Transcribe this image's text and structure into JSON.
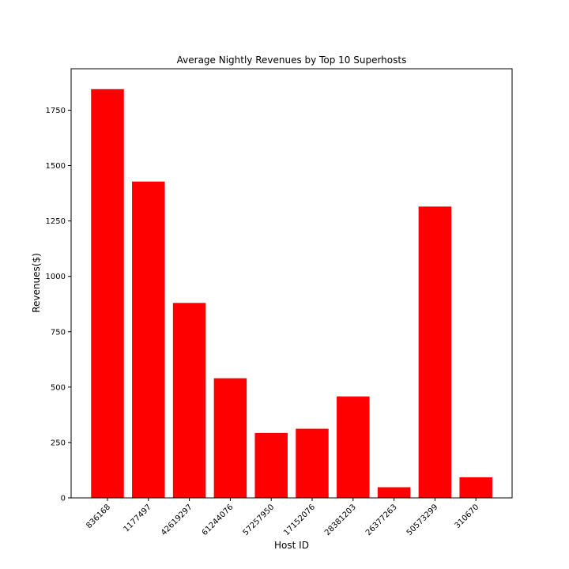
{
  "chart_data": {
    "type": "bar",
    "title": "Average Nightly Revenues by Top 10 Superhosts",
    "xlabel": "Host ID",
    "ylabel": "Revenues($)",
    "categories": [
      "836168",
      "1177497",
      "42619297",
      "61244076",
      "57257950",
      "17152076",
      "28381203",
      "26377263",
      "50573299",
      "310670"
    ],
    "values": [
      1845,
      1428,
      880,
      540,
      293,
      312,
      458,
      48,
      1315,
      93
    ],
    "ylim": [
      0,
      1937
    ],
    "yticks": [
      0,
      250,
      500,
      750,
      1000,
      1250,
      1500,
      1750
    ],
    "ytick_labels": [
      "0",
      "250",
      "500",
      "750",
      "1000",
      "1250",
      "1500",
      "1750"
    ],
    "bar_color": "#ff0000",
    "grid": false,
    "legend": "none"
  }
}
